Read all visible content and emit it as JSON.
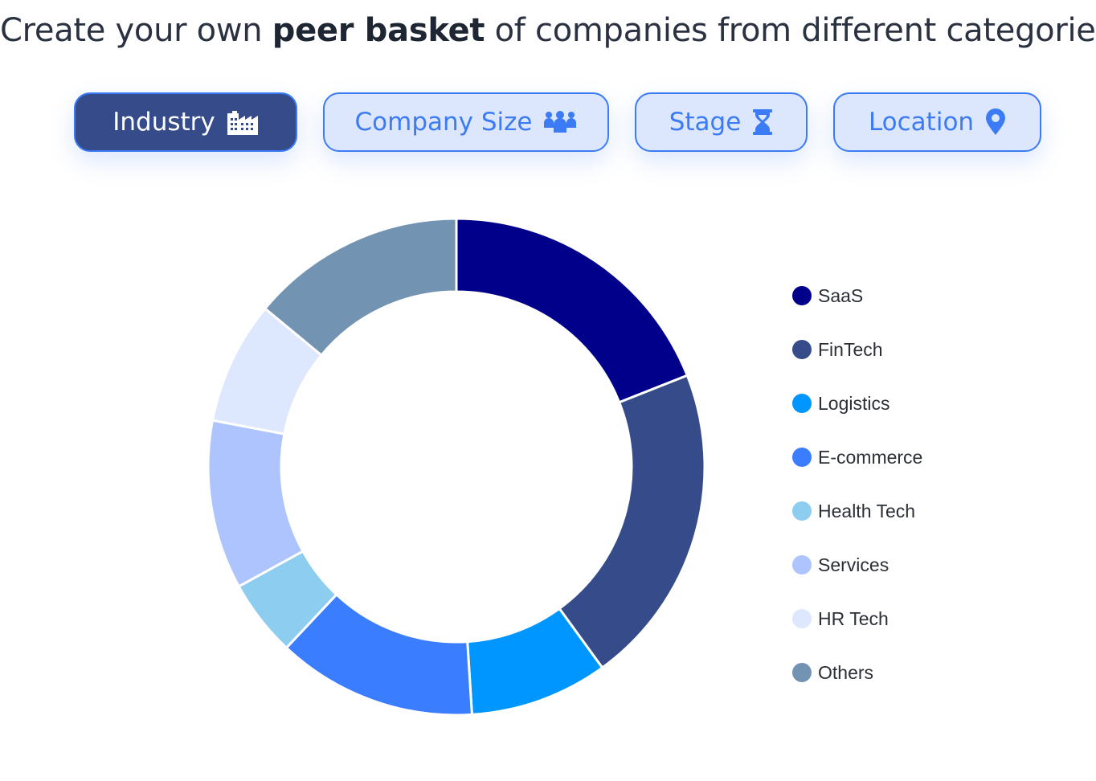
{
  "headline": {
    "prefix": "Create your own ",
    "bold": "peer basket",
    "suffix": " of companies from different categories."
  },
  "tabs": [
    {
      "label": "Industry",
      "icon": "factory-icon",
      "active": true
    },
    {
      "label": "Company Size",
      "icon": "people-group-icon",
      "active": false
    },
    {
      "label": "Stage",
      "icon": "hourglass-icon",
      "active": false
    },
    {
      "label": "Location",
      "icon": "location-pin-icon",
      "active": false
    }
  ],
  "colors": {
    "accent": "#3b7bf5",
    "active_tab_bg": "#364c8a",
    "tab_bg": "#dce6fc"
  },
  "chart_data": {
    "type": "pie",
    "variant": "donut",
    "title": "",
    "categories": [
      "SaaS",
      "FinTech",
      "Logistics",
      "E-commerce",
      "Health Tech",
      "Services",
      "HR Tech",
      "Others"
    ],
    "values": [
      19,
      21,
      9,
      13,
      5,
      11,
      8,
      14
    ],
    "unit": "%",
    "colors": [
      "#00008b",
      "#364c8a",
      "#0096ff",
      "#3a7dff",
      "#8dcdf0",
      "#adc4ff",
      "#dde7fd",
      "#7393b3"
    ],
    "legend_placement": "right"
  }
}
